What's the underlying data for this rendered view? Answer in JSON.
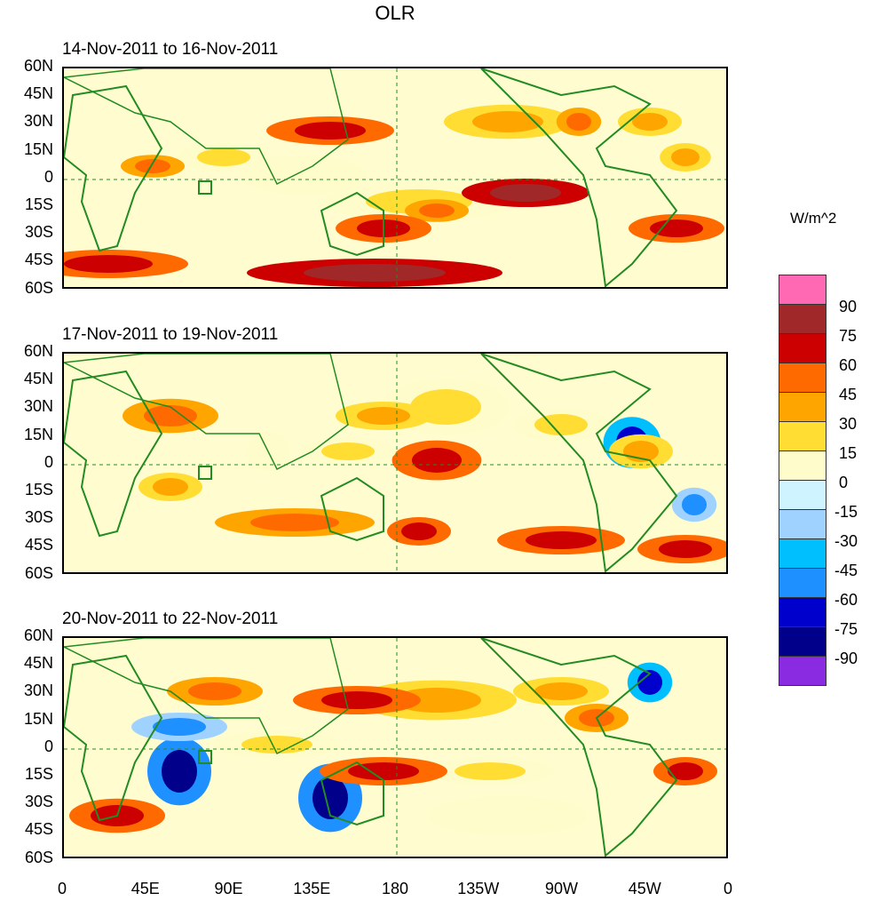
{
  "title": "OLR",
  "panels": [
    {
      "label": "14-Nov-2011 to 16-Nov-2011"
    },
    {
      "label": "17-Nov-2011 to 19-Nov-2011"
    },
    {
      "label": "20-Nov-2011 to 22-Nov-2011"
    }
  ],
  "lat_ticks": [
    "60N",
    "45N",
    "30N",
    "15N",
    "0",
    "15S",
    "30S",
    "45S",
    "60S"
  ],
  "lon_ticks": [
    "0",
    "45E",
    "90E",
    "135E",
    "180",
    "135W",
    "90W",
    "45W",
    "0"
  ],
  "colorbar": {
    "unit": "W/m^2",
    "labels": [
      "90",
      "75",
      "60",
      "45",
      "30",
      "15",
      "0",
      "-15",
      "-30",
      "-45",
      "-60",
      "-75",
      "-90"
    ],
    "colors": [
      "#ff69b4",
      "#a02828",
      "#cc0000",
      "#ff6a00",
      "#ffa500",
      "#ffdd33",
      "#fffccc",
      "#d0f4ff",
      "#a0d2ff",
      "#00bfff",
      "#1e90ff",
      "#0000cd",
      "#00008b",
      "#8a2be2"
    ]
  },
  "colors": {
    "coast": "#228b22",
    "background": "#fffdd0"
  }
}
